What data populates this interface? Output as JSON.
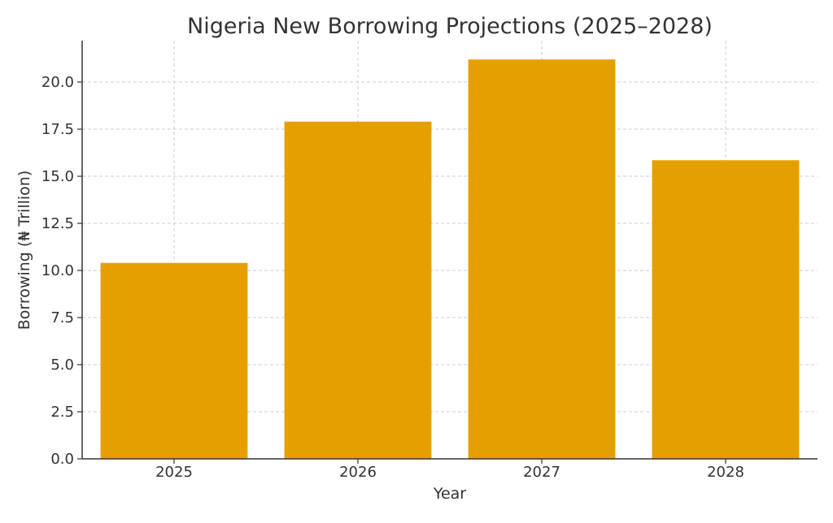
{
  "chart_data": {
    "type": "bar",
    "title": "Nigeria New Borrowing Projections (2025–2028)",
    "xlabel": "Year",
    "ylabel": "Borrowing (₦ Trillion)",
    "categories": [
      "2025",
      "2026",
      "2027",
      "2028"
    ],
    "values": [
      10.4,
      17.9,
      21.2,
      15.85
    ],
    "ylim": [
      0,
      22.2
    ],
    "yticks": [
      0,
      2.5,
      5,
      7.5,
      10,
      12.5,
      15,
      17.5,
      20
    ],
    "ytick_labels": [
      "0.0",
      "2.5",
      "5.0",
      "7.5",
      "10.0",
      "12.5",
      "15.0",
      "17.5",
      "20.0"
    ],
    "bar_color": "#E69F00",
    "grid": true
  }
}
